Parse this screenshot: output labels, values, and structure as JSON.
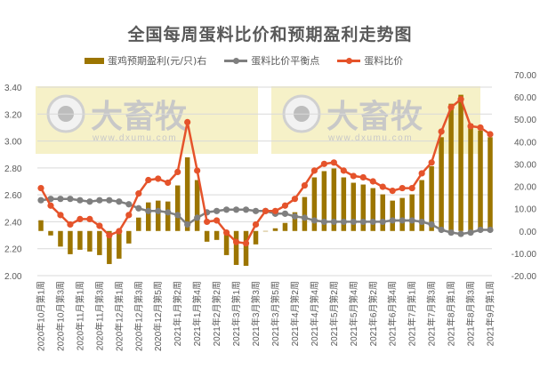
{
  "title": "全国每周蛋料比价和预期盈利走势图",
  "legend": {
    "bar": "蛋鸡预期盈利(元/只)右",
    "gray_line": "蛋料比价平衡点",
    "red_line": "蛋料比价"
  },
  "colors": {
    "bar": "#9C7500",
    "gray_line": "#7F7F7F",
    "red_line": "#E5532B",
    "grid": "#D9D9D9",
    "axis_text": "#595959",
    "watermark_bg": "#F5EEBE"
  },
  "watermark": {
    "brand": "大畜牧",
    "url": "www.dxumu.com"
  },
  "chart_data": {
    "type": "bar+line",
    "title": "全国每周蛋料比价和预期盈利走势图",
    "xlabel": "",
    "ylabel_left": "蛋料比价",
    "ylabel_right": "蛋鸡预期盈利(元/只)",
    "ylim_left": [
      2.0,
      3.4
    ],
    "ylim_right": [
      -20,
      70
    ],
    "left_ticks": [
      "2.00",
      "2.20",
      "2.40",
      "2.60",
      "2.80",
      "3.00",
      "3.20",
      "3.40"
    ],
    "right_ticks": [
      "-20.00",
      "-10.00",
      "0.00",
      "10.00",
      "20.00",
      "30.00",
      "40.00",
      "50.00",
      "60.00",
      "70.00"
    ],
    "grid": true,
    "legend_position": "top",
    "categories": [
      "2020年10月第1周",
      "2020年10月第2周",
      "2020年10月第3周",
      "2020年10月第4周",
      "2020年11月第1周",
      "2020年11月第2周",
      "2020年11月第3周",
      "2020年11月第4周",
      "2020年12月第1周",
      "2020年12月第2周",
      "2020年12月第3周",
      "2020年12月第4周",
      "2020年12月第5周",
      "2021年1月第1周",
      "2021年1月第2周",
      "2021年1月第3周",
      "2021年1月第4周",
      "2021年2月第1周",
      "2021年2月第2周",
      "2021年2月第3周",
      "2021年3月第1周",
      "2021年3月第2周",
      "2021年3月第3周",
      "2021年3月第4周",
      "2021年3月第5周",
      "2021年4月第1周",
      "2021年4月第2周",
      "2021年4月第3周",
      "2021年4月第4周",
      "2021年5月第1周",
      "2021年5月第2周",
      "2021年5月第3周",
      "2021年5月第4周",
      "2021年6月第1周",
      "2021年6月第2周",
      "2021年6月第3周",
      "2021年6月第4周",
      "2021年6月第5周",
      "2021年7月第1周",
      "2021年7月第2周",
      "2021年7月第3周",
      "2021年7月第4周",
      "2021年8月第1周",
      "2021年8月第2周",
      "2021年8月第3周",
      "2021年8月第4周",
      "2021年9月第1周"
    ],
    "visible_tick_labels": [
      "2020年10月第1周",
      "2020年10月第3周",
      "2020年11月第1周",
      "2020年11月第3周",
      "2020年12月第1周",
      "2020年12月第3周",
      "2020年12月第5周",
      "2021年1月第2周",
      "2021年1月第4周",
      "2021年2月第2周",
      "2021年3月第1周",
      "2021年3月第3周",
      "2021年3月第5周",
      "2021年4月第2周",
      "2021年4月第4周",
      "2021年5月第2周",
      "2021年5月第4周",
      "2021年6月第2周",
      "2021年6月第4周",
      "2021年7月第1周",
      "2021年7月第3周",
      "2021年8月第1周",
      "2021年8月第3周",
      "2021年9月第1周"
    ],
    "series": [
      {
        "name": "蛋鸡预期盈利(元/只)右",
        "type": "bar",
        "axis": "right",
        "values": [
          4.8,
          -2.0,
          -7.0,
          -10.4,
          -8.4,
          -9.2,
          -10.8,
          -14.8,
          -12.4,
          -5.6,
          6.0,
          12.8,
          13.6,
          13.2,
          20.4,
          33.0,
          22.8,
          -4.8,
          -4.0,
          -10.8,
          -15.2,
          -15.6,
          -6.0,
          0.0,
          1.2,
          3.6,
          8.4,
          15.2,
          24.0,
          26.8,
          28.0,
          24.0,
          21.6,
          20.8,
          19.2,
          16.4,
          13.6,
          14.8,
          16.4,
          22.8,
          29.0,
          42.0,
          57.0,
          61.0,
          48.0,
          45.0,
          42.0
        ]
      },
      {
        "name": "蛋料比价平衡点",
        "type": "line",
        "axis": "left",
        "values": [
          2.56,
          2.57,
          2.57,
          2.57,
          2.56,
          2.55,
          2.56,
          2.56,
          2.55,
          2.53,
          2.5,
          2.48,
          2.48,
          2.47,
          2.45,
          2.38,
          2.43,
          2.47,
          2.48,
          2.49,
          2.49,
          2.49,
          2.48,
          2.48,
          2.46,
          2.46,
          2.44,
          2.43,
          2.41,
          2.4,
          2.4,
          2.4,
          2.4,
          2.4,
          2.4,
          2.4,
          2.41,
          2.41,
          2.41,
          2.4,
          2.38,
          2.34,
          2.32,
          2.31,
          2.32,
          2.34,
          2.34
        ]
      },
      {
        "name": "蛋料比价",
        "type": "line",
        "axis": "left",
        "values": [
          2.65,
          2.52,
          2.45,
          2.38,
          2.42,
          2.42,
          2.37,
          2.3,
          2.33,
          2.45,
          2.61,
          2.71,
          2.72,
          2.69,
          2.77,
          3.14,
          2.78,
          2.4,
          2.41,
          2.32,
          2.25,
          2.24,
          2.38,
          2.48,
          2.48,
          2.52,
          2.57,
          2.67,
          2.78,
          2.83,
          2.84,
          2.78,
          2.74,
          2.73,
          2.7,
          2.66,
          2.63,
          2.65,
          2.65,
          2.76,
          2.84,
          3.07,
          3.25,
          3.31,
          3.11,
          3.1,
          3.05
        ]
      }
    ]
  }
}
